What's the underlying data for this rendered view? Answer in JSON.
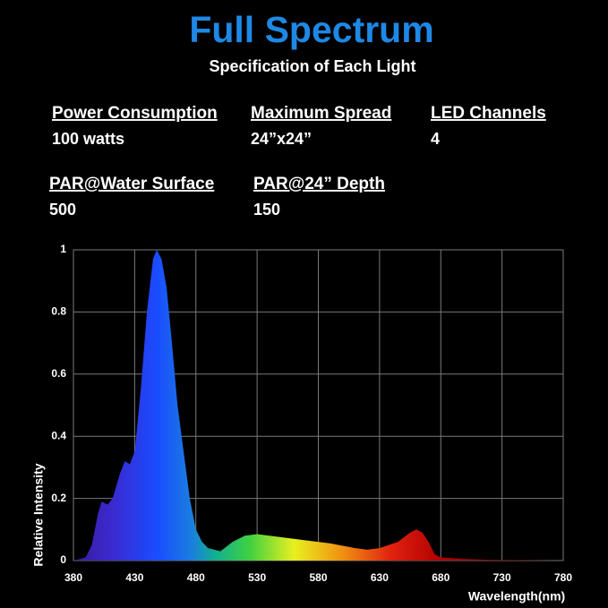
{
  "header": {
    "title": "Full Spectrum",
    "subtitle": "Specification of Each Light"
  },
  "specs": [
    {
      "label": "Power Consumption",
      "value": "100 watts"
    },
    {
      "label": "Maximum Spread",
      "value": "24”x24”"
    },
    {
      "label": "LED Channels",
      "value": "4"
    },
    {
      "label": "PAR@Water Surface",
      "value": "500"
    },
    {
      "label": "PAR@24” Depth",
      "value": "150"
    }
  ],
  "chart_data": {
    "type": "area",
    "x_label": "Wavelength(nm)",
    "y_label": "Relative Intensity",
    "x": [
      380,
      390,
      395,
      400,
      403,
      408,
      412,
      418,
      422,
      426,
      430,
      435,
      440,
      445,
      448,
      452,
      456,
      460,
      465,
      470,
      475,
      480,
      485,
      490,
      500,
      510,
      520,
      530,
      550,
      570,
      590,
      610,
      620,
      630,
      645,
      655,
      660,
      665,
      670,
      675,
      680,
      700,
      720,
      780
    ],
    "values": [
      0,
      0.01,
      0.05,
      0.15,
      0.19,
      0.18,
      0.2,
      0.28,
      0.32,
      0.31,
      0.35,
      0.55,
      0.8,
      0.97,
      1.0,
      0.97,
      0.88,
      0.72,
      0.5,
      0.35,
      0.2,
      0.1,
      0.06,
      0.04,
      0.03,
      0.06,
      0.08,
      0.085,
      0.075,
      0.065,
      0.055,
      0.04,
      0.035,
      0.04,
      0.06,
      0.09,
      0.1,
      0.09,
      0.06,
      0.02,
      0.01,
      0.005,
      0.002,
      0
    ],
    "xlim": [
      380,
      780
    ],
    "xticks": [
      380,
      430,
      480,
      530,
      580,
      630,
      680,
      730,
      780
    ],
    "ylim": [
      0,
      1
    ],
    "yticks": [
      0,
      0.2,
      0.4,
      0.6,
      0.8,
      1
    ],
    "grid": true
  }
}
